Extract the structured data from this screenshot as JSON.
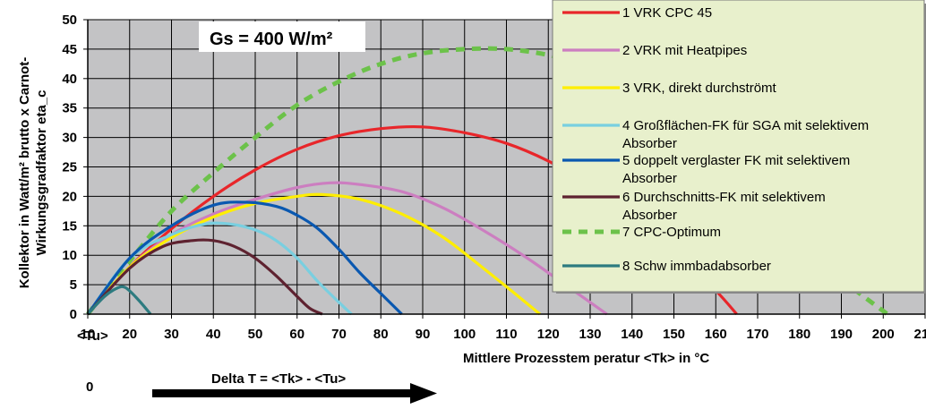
{
  "chart_data": {
    "type": "line",
    "xlabel": "Mittlere Prozesstem peratur <Tk> in °C",
    "ylabel": "Kollektor in Watt/m² brutto x Carnot-\nWirkungsgradfaktor eta_c",
    "xlim": [
      10,
      210
    ],
    "ylim": [
      0,
      50
    ],
    "x_ticks": [
      "10",
      "20",
      "30",
      "40",
      "50",
      "60",
      "70",
      "80",
      "90",
      "100",
      "110",
      "120",
      "130",
      "140",
      "150",
      "160",
      "170",
      "180",
      "190",
      "200",
      "210"
    ],
    "x_tick_sub": "<Tu>",
    "y_ticks": [
      "0",
      "5",
      "10",
      "15",
      "20",
      "25",
      "30",
      "35",
      "40",
      "45",
      "50"
    ],
    "grid": true,
    "legend_position": "top-right",
    "annotation": "Gs = 400 W/m²",
    "delta_label": "Delta T = <Tk> - <Tu>",
    "delta_zero": "0",
    "series": [
      {
        "name": "1  VRK CPC 45",
        "color": "#e8262a",
        "dashed": false,
        "x": [
          10,
          20,
          30,
          40,
          50,
          60,
          70,
          80,
          90,
          100,
          110,
          120,
          130,
          140,
          150,
          160,
          165
        ],
        "y": [
          0,
          8,
          14.5,
          20,
          24.5,
          28,
          30.3,
          31.5,
          31.8,
          30.8,
          29,
          26,
          22,
          17,
          11,
          4,
          0
        ]
      },
      {
        "name": "2 VRK mit Heatpipes",
        "color": "#cc7ec0",
        "dashed": false,
        "x": [
          10,
          20,
          30,
          40,
          50,
          60,
          68,
          75,
          85,
          95,
          105,
          115,
          125,
          130,
          134
        ],
        "y": [
          0,
          8,
          13.5,
          17,
          19.5,
          21.5,
          22.3,
          22,
          20.8,
          18,
          14,
          9.5,
          4.5,
          2,
          0
        ]
      },
      {
        "name": "3 VRK, direkt durchströmt",
        "color": "#ffee00",
        "dashed": false,
        "x": [
          10,
          20,
          30,
          40,
          50,
          60,
          66,
          75,
          85,
          95,
          105,
          112,
          118
        ],
        "y": [
          0,
          8,
          13,
          16.5,
          18.8,
          20,
          20.3,
          19.5,
          17,
          13,
          7.5,
          3.5,
          0
        ]
      },
      {
        "name": "4 Großflächen-FK für SGA mit selektivem Absorber",
        "color": "#79cfe0",
        "dashed": false,
        "x": [
          10,
          20,
          30,
          38,
          44,
          50,
          55,
          60,
          65,
          70,
          73
        ],
        "y": [
          0,
          9.5,
          13.5,
          15.3,
          15.3,
          14.3,
          12.5,
          9.5,
          5.5,
          2,
          0
        ]
      },
      {
        "name": "5 doppelt verglaster FK mit selektivem Absorber",
        "color": "#0a58b0",
        "dashed": false,
        "x": [
          10,
          20,
          30,
          40,
          48,
          55,
          60,
          65,
          70,
          75,
          80,
          85
        ],
        "y": [
          0,
          9.5,
          15,
          18.5,
          19,
          18.3,
          16.8,
          14.5,
          11,
          7,
          3.5,
          0
        ]
      },
      {
        "name": "6 Durchschnitts-FK mit selektivem Absorber",
        "color": "#5e2230",
        "dashed": false,
        "x": [
          10,
          20,
          28,
          35,
          40,
          45,
          50,
          55,
          60,
          63,
          66
        ],
        "y": [
          0,
          7.8,
          11.5,
          12.5,
          12.5,
          11.5,
          9.5,
          6.5,
          3,
          1,
          0
        ]
      },
      {
        "name": "7 CPC-Optimum",
        "color": "#6cc24a",
        "dashed": true,
        "x": [
          10,
          20,
          30,
          40,
          50,
          60,
          70,
          80,
          90,
          100,
          110,
          120,
          130,
          140,
          150,
          160,
          170,
          180,
          190,
          201
        ],
        "y": [
          0,
          9,
          17.5,
          24,
          30,
          35.5,
          39.5,
          42.5,
          44.3,
          45,
          45,
          44,
          42,
          38.5,
          33.5,
          27,
          20,
          13,
          6,
          0
        ]
      },
      {
        "name": "8 Schw immbadabsorber",
        "color": "#2d7b80",
        "dashed": false,
        "x": [
          10,
          14,
          17,
          19,
          22,
          25
        ],
        "y": [
          0,
          3,
          4.4,
          4.5,
          2.5,
          0
        ]
      }
    ]
  }
}
